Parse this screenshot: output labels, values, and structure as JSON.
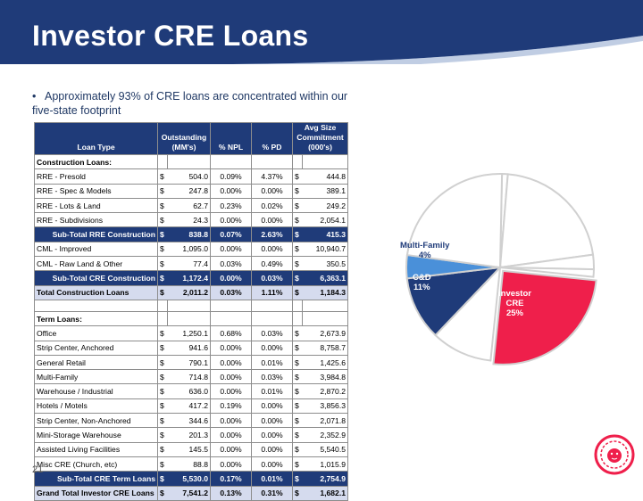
{
  "header": {
    "title": "Investor CRE Loans"
  },
  "bullet": "Approximately 93% of CRE loans are concentrated within our five-state footprint",
  "page_number": "21",
  "table": {
    "columns": [
      "Loan Type",
      "Outstanding (MM's)",
      "% NPL",
      "% PD",
      "Avg Size Commitment (000's)"
    ],
    "col_lines": {
      "outstanding": [
        "Outstanding",
        "(MM's)"
      ],
      "avgsize": [
        "Avg Size",
        "Commitment",
        "(000's)"
      ]
    },
    "rows": [
      {
        "kind": "section",
        "name": "Construction Loans:"
      },
      {
        "kind": "row",
        "name": "RRE - Presold",
        "out": "504.0",
        "npl": "0.09%",
        "pd": "4.37%",
        "avg": "444.8"
      },
      {
        "kind": "row",
        "name": "RRE - Spec & Models",
        "out": "247.8",
        "npl": "0.00%",
        "pd": "0.00%",
        "avg": "389.1"
      },
      {
        "kind": "row",
        "name": "RRE - Lots & Land",
        "out": "62.7",
        "npl": "0.23%",
        "pd": "0.02%",
        "avg": "249.2"
      },
      {
        "kind": "row",
        "name": "RRE - Subdivisions",
        "out": "24.3",
        "npl": "0.00%",
        "pd": "0.00%",
        "avg": "2,054.1"
      },
      {
        "kind": "sub",
        "name": "Sub-Total RRE Construction",
        "out": "838.8",
        "npl": "0.07%",
        "pd": "2.63%",
        "avg": "415.3"
      },
      {
        "kind": "row",
        "name": "CML - Improved",
        "out": "1,095.0",
        "npl": "0.00%",
        "pd": "0.00%",
        "avg": "10,940.7"
      },
      {
        "kind": "row",
        "name": "CML - Raw Land & Other",
        "out": "77.4",
        "npl": "0.03%",
        "pd": "0.49%",
        "avg": "350.5"
      },
      {
        "kind": "sub",
        "name": "Sub-Total CRE Construction",
        "out": "1,172.4",
        "npl": "0.00%",
        "pd": "0.03%",
        "avg": "6,363.1"
      },
      {
        "kind": "tot",
        "name": "Total Construction Loans",
        "out": "2,011.2",
        "npl": "0.03%",
        "pd": "1.11%",
        "avg": "1,184.3"
      },
      {
        "kind": "blank"
      },
      {
        "kind": "section",
        "name": "Term Loans:"
      },
      {
        "kind": "row",
        "name": "Office",
        "out": "1,250.1",
        "npl": "0.68%",
        "pd": "0.03%",
        "avg": "2,673.9"
      },
      {
        "kind": "row",
        "name": "Strip Center, Anchored",
        "out": "941.6",
        "npl": "0.00%",
        "pd": "0.00%",
        "avg": "8,758.7"
      },
      {
        "kind": "row",
        "name": "General Retail",
        "out": "790.1",
        "npl": "0.00%",
        "pd": "0.01%",
        "avg": "1,425.6"
      },
      {
        "kind": "row",
        "name": "Multi-Family",
        "out": "714.8",
        "npl": "0.00%",
        "pd": "0.03%",
        "avg": "3,984.8"
      },
      {
        "kind": "row",
        "name": "Warehouse / Industrial",
        "out": "636.0",
        "npl": "0.00%",
        "pd": "0.01%",
        "avg": "2,870.2"
      },
      {
        "kind": "row",
        "name": "Hotels / Motels",
        "out": "417.2",
        "npl": "0.19%",
        "pd": "0.00%",
        "avg": "3,856.3"
      },
      {
        "kind": "row",
        "name": "Strip Center, Non-Anchored",
        "out": "344.6",
        "npl": "0.00%",
        "pd": "0.00%",
        "avg": "2,071.8"
      },
      {
        "kind": "row",
        "name": "Mini-Storage Warehouse",
        "out": "201.3",
        "npl": "0.00%",
        "pd": "0.00%",
        "avg": "2,352.9"
      },
      {
        "kind": "row",
        "name": "Assisted Living Facilities",
        "out": "145.5",
        "npl": "0.00%",
        "pd": "0.00%",
        "avg": "5,540.5"
      },
      {
        "kind": "row",
        "name": "Misc CRE (Church, etc)",
        "out": "88.8",
        "npl": "0.00%",
        "pd": "0.00%",
        "avg": "1,015.9"
      },
      {
        "kind": "sub",
        "name": "Sub-Total CRE Term Loans",
        "out": "5,530.0",
        "npl": "0.17%",
        "pd": "0.01%",
        "avg": "2,754.9"
      },
      {
        "kind": "tot",
        "name": "Grand Total Investor CRE Loans",
        "out": "7,541.2",
        "npl": "0.13%",
        "pd": "0.31%",
        "avg": "1,682.1"
      }
    ],
    "currency_symbol": "$"
  },
  "pie": {
    "slices": [
      {
        "label": "",
        "share": 0.01,
        "color": "#ffffff"
      },
      {
        "label": "",
        "share": 0.215,
        "color": "#ffffff"
      },
      {
        "label": "",
        "share": 0.025,
        "color": "#ffffff"
      },
      {
        "label": "",
        "share": 0.013,
        "color": "#ffffff"
      },
      {
        "label": "Investor CRE 25%",
        "share": 0.25,
        "color": "#ef1f4b"
      },
      {
        "label": "",
        "share": 0.105,
        "color": "#ffffff"
      },
      {
        "label": "C&D 11%",
        "share": 0.11,
        "color": "#1f3b79"
      },
      {
        "label": "Multi-Family 4%",
        "share": 0.04,
        "color": "#4a90d9"
      },
      {
        "label": "",
        "share": 0.232,
        "color": "#ffffff"
      }
    ],
    "labels": {
      "investor": [
        "Investor",
        "CRE",
        "25%"
      ],
      "cd": [
        "C&D",
        "11%"
      ],
      "mf": [
        "Multi-Family",
        "4%"
      ]
    }
  }
}
